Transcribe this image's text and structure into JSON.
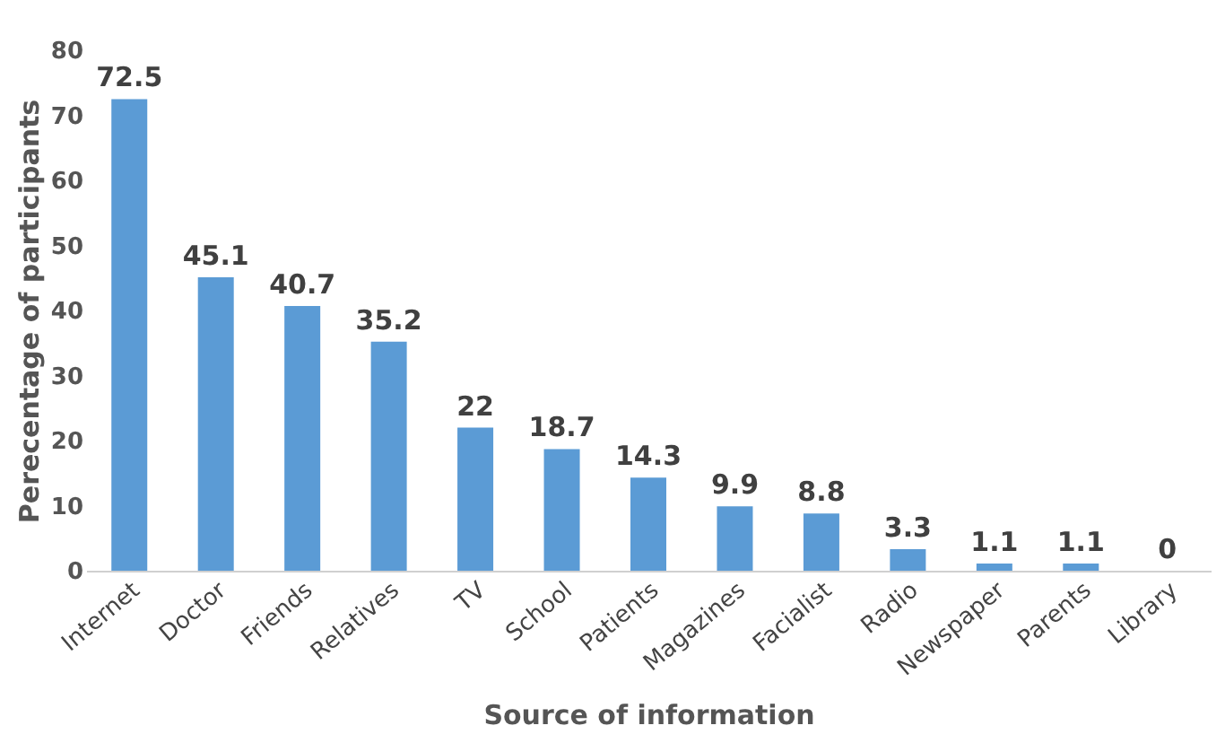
{
  "chart_data": {
    "type": "bar",
    "xlabel": "Source of information",
    "ylabel": "Perecentage of participants",
    "categories": [
      "Internet",
      "Doctor",
      "Friends",
      "Relatives",
      "TV",
      "School",
      "Patients",
      "Magazines",
      "Facialist",
      "Radio",
      "Newspaper",
      "Parents",
      "Library"
    ],
    "values": [
      72.5,
      45.1,
      40.7,
      35.2,
      22,
      18.7,
      14.3,
      9.9,
      8.8,
      3.3,
      1.1,
      1.1,
      0
    ],
    "color": "#5b9bd5",
    "ylim": [
      0,
      80
    ],
    "yticks": [
      0,
      10,
      20,
      30,
      40,
      50,
      60,
      70,
      80
    ],
    "data_labels": true,
    "grid": false
  }
}
